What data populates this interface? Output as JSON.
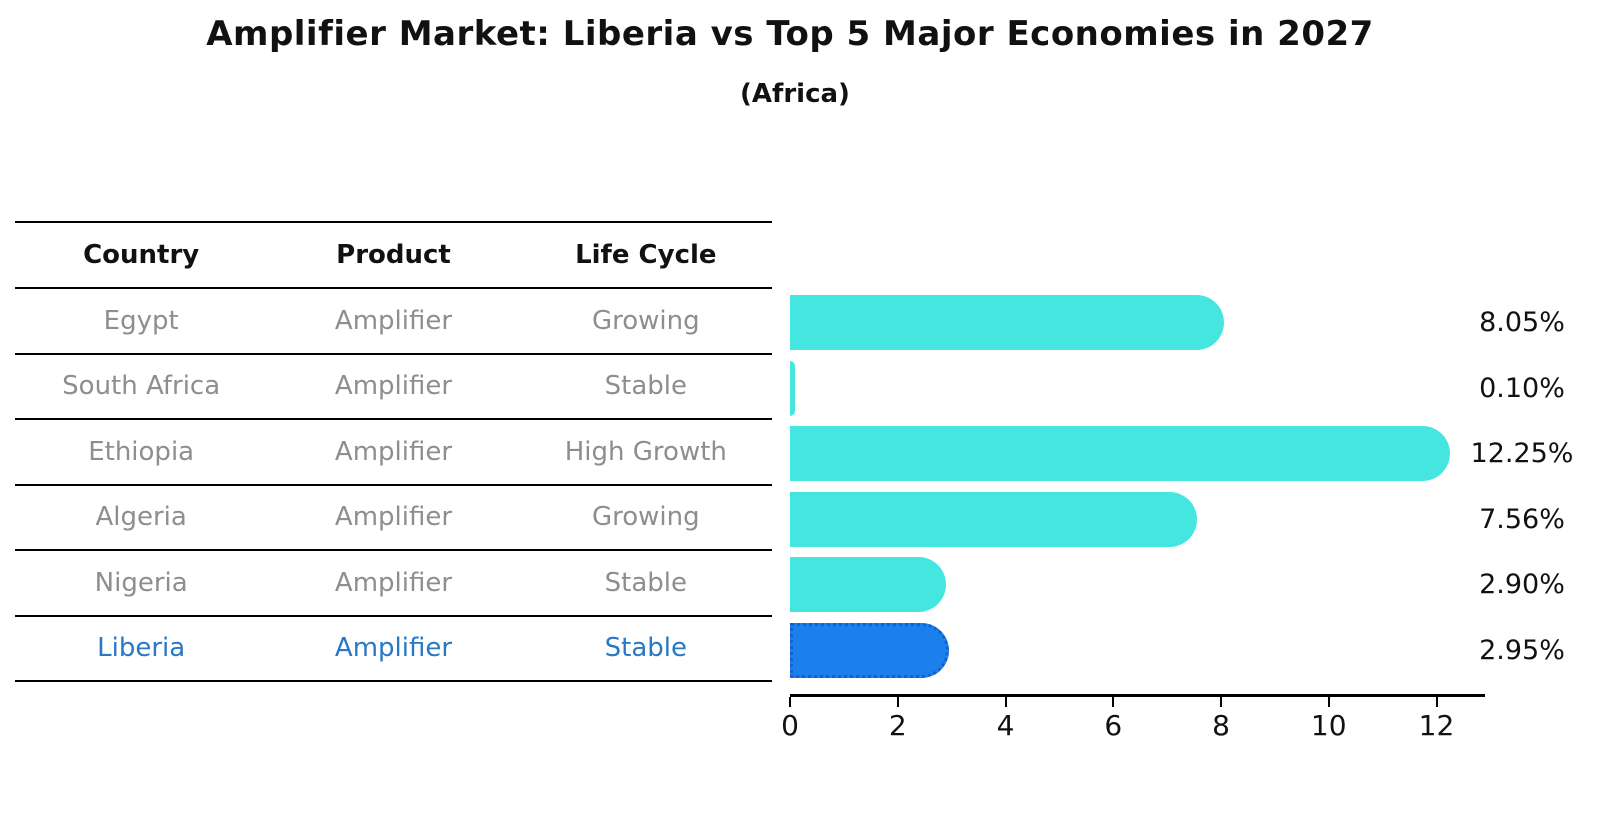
{
  "title": "Amplifier Market: Liberia vs Top 5 Major Economies in 2027",
  "subtitle": "(Africa)",
  "table": {
    "headers": [
      "Country",
      "Product",
      "Life Cycle"
    ],
    "rows": [
      {
        "country": "Egypt",
        "product": "Amplifier",
        "life_cycle": "Growing",
        "highlighted": false
      },
      {
        "country": "South Africa",
        "product": "Amplifier",
        "life_cycle": "Stable",
        "highlighted": false
      },
      {
        "country": "Ethiopia",
        "product": "Amplifier",
        "life_cycle": "High Growth",
        "highlighted": false
      },
      {
        "country": "Algeria",
        "product": "Amplifier",
        "life_cycle": "Growing",
        "highlighted": false
      },
      {
        "country": "Nigeria",
        "product": "Amplifier",
        "life_cycle": "Stable",
        "highlighted": false
      },
      {
        "country": "Liberia",
        "product": "Amplifier",
        "life_cycle": "Stable",
        "highlighted": true
      }
    ]
  },
  "chart_data": {
    "type": "bar",
    "orientation": "horizontal",
    "categories": [
      "Egypt",
      "South Africa",
      "Ethiopia",
      "Algeria",
      "Nigeria",
      "Liberia"
    ],
    "values": [
      8.05,
      0.1,
      12.25,
      7.56,
      2.9,
      2.95
    ],
    "value_labels": [
      "8.05%",
      "0.10%",
      "12.25%",
      "7.56%",
      "2.90%",
      "2.95%"
    ],
    "x_ticks": [
      0,
      2,
      4,
      6,
      8,
      10,
      12
    ],
    "x_tick_labels": [
      "0",
      "2",
      "4",
      "6",
      "8",
      "10",
      "12"
    ],
    "xlim": [
      0,
      12.9
    ],
    "grid": false,
    "legend": false,
    "highlight_index": 5,
    "bar_color": "#45e6e0",
    "highlight_bar_color": "#1b80ec",
    "highlight_bar_border_color": "#0f62cf",
    "highlight_text_color": "#2878c8",
    "row_text_color": "#8e8e8e",
    "axis_color": "#000000"
  }
}
